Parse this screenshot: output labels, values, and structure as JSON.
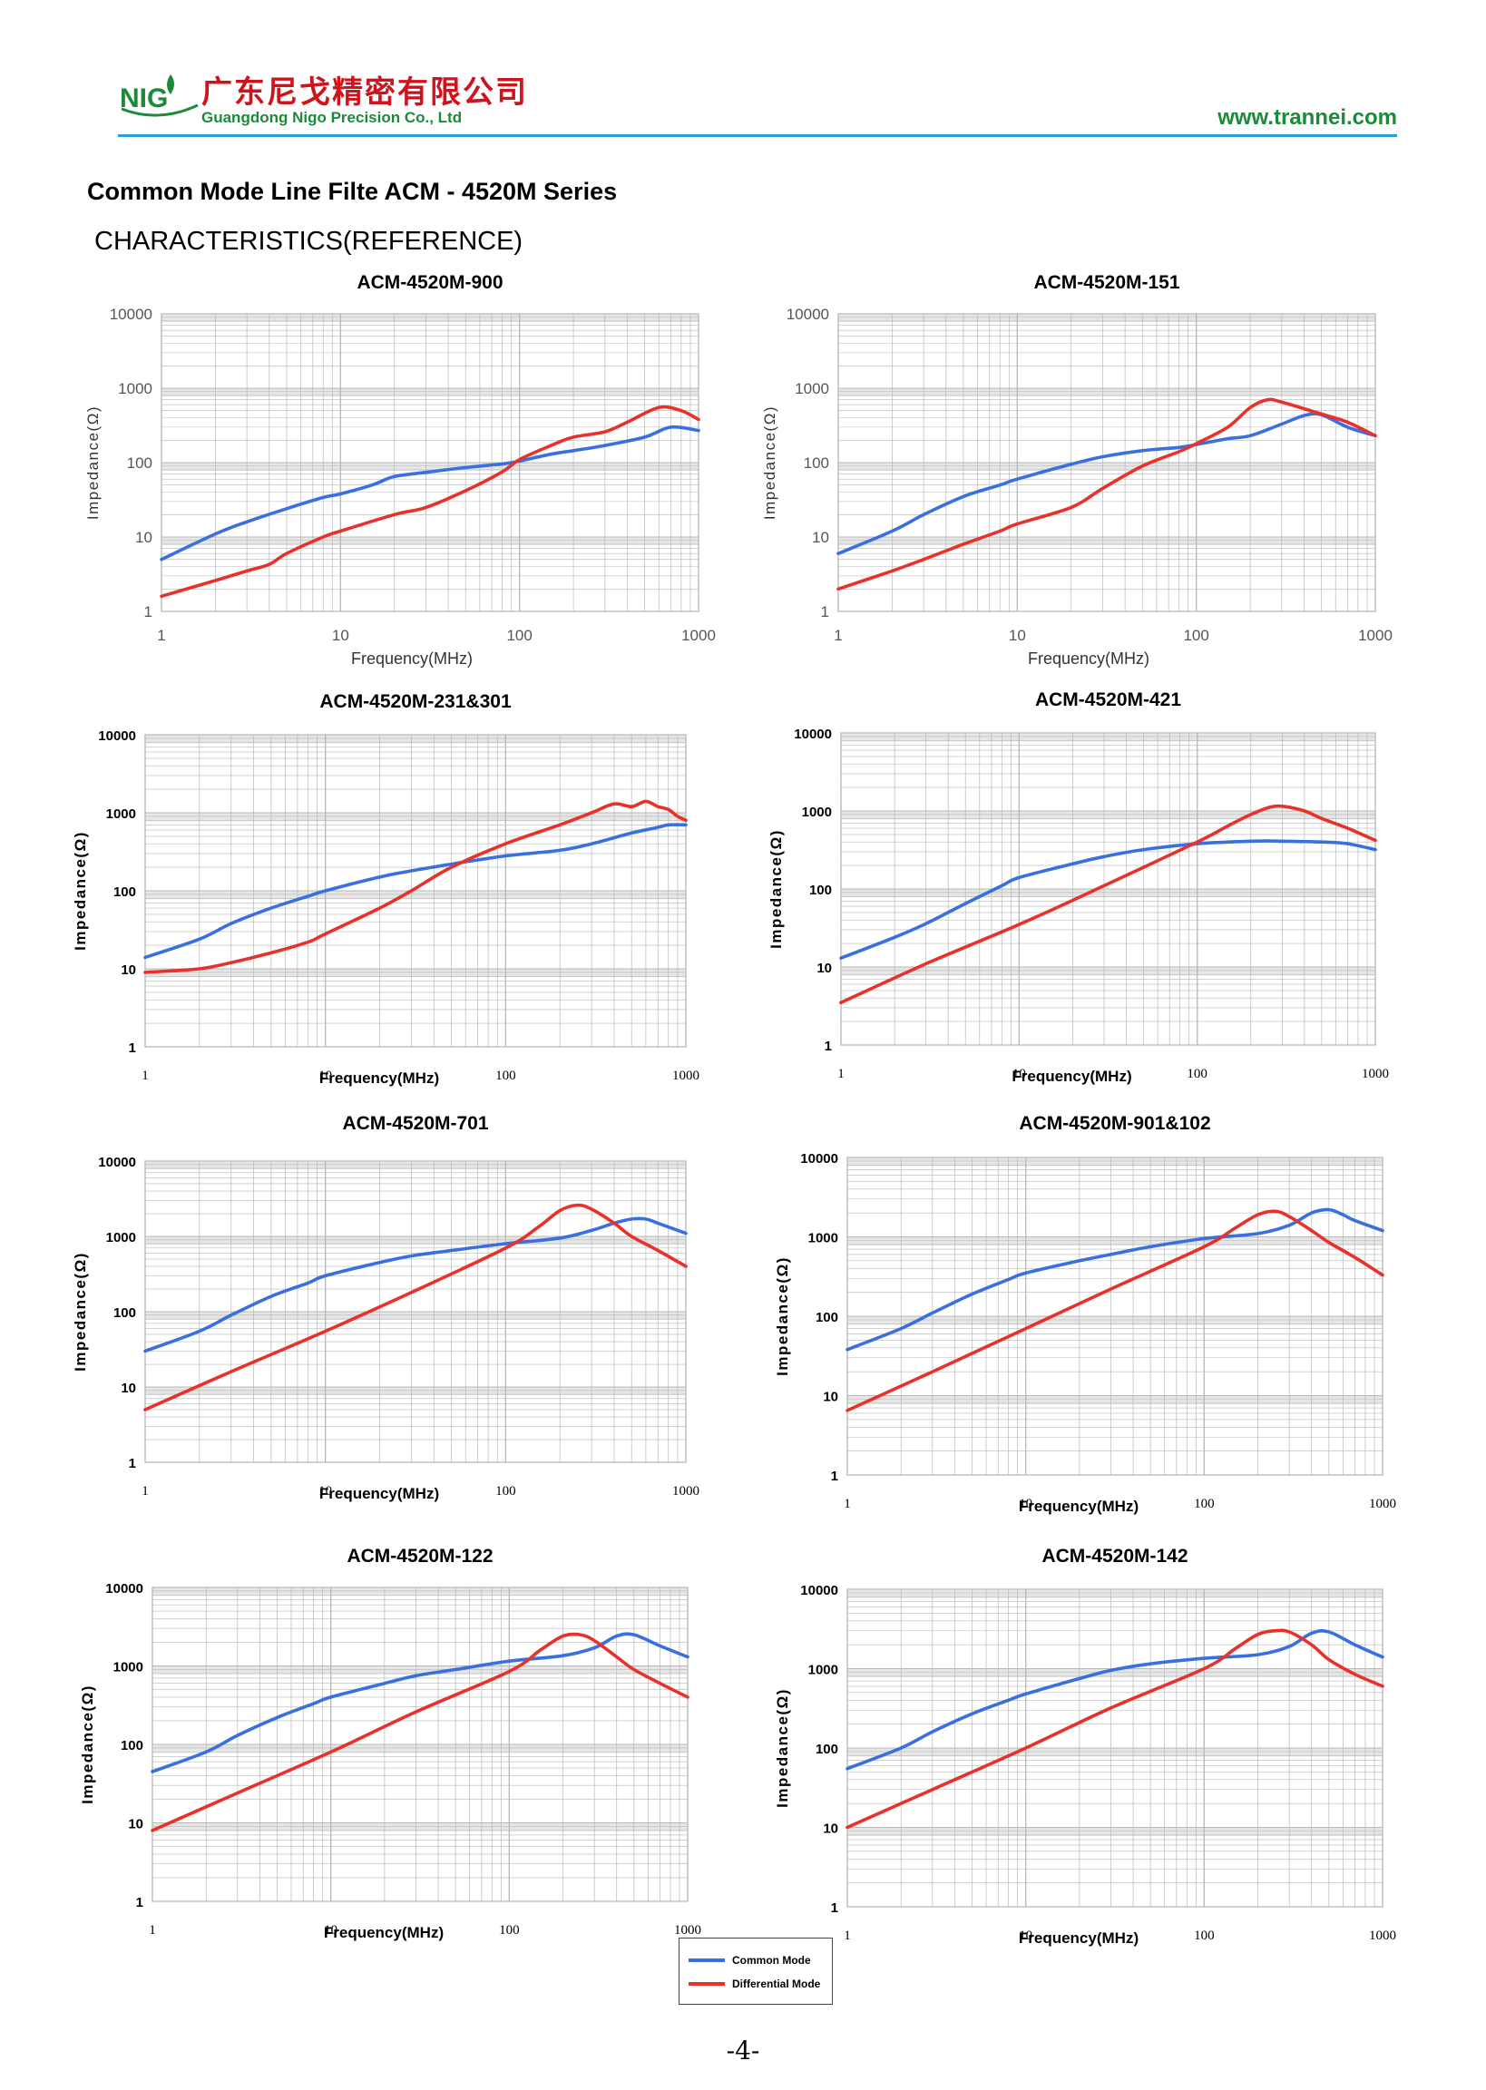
{
  "header": {
    "logo_text": "NIG",
    "company_cn": "广东尼戈精密有限公司",
    "company_en": "Guangdong Nigo Precision Co., Ltd",
    "website": "www.trannei.com"
  },
  "title": "Common Mode Line Filte ACM - 4520M Series",
  "subtitle": "CHARACTERISTICS(REFERENCE)",
  "colors": {
    "common_mode": "#3a6fe0",
    "differential_mode": "#e8312b",
    "grid": "#b8b8b8",
    "band": "#e6e6e6",
    "brand_green": "#1d8a3a",
    "brand_red": "#d0121b",
    "rule_blue": "#2a9fd6"
  },
  "axis_labels": {
    "x": "Frequency(MHz)",
    "y": "Impedance(Ω)"
  },
  "x_ticks": [
    "1",
    "10",
    "100",
    "1000"
  ],
  "y_ticks": [
    "1",
    "10",
    "100",
    "1000",
    "10000"
  ],
  "legend": {
    "common": "Common Mode",
    "differential": "Differential Mode"
  },
  "page_number": "-4-",
  "chart_data": [
    {
      "type": "line",
      "title": "ACM-4520M-900",
      "xlabel": "Frequency(MHz)",
      "ylabel": "Impedance(Ω)",
      "x_scale": "log",
      "y_scale": "log",
      "xlim": [
        1,
        1000
      ],
      "ylim": [
        1,
        10000
      ],
      "series": [
        {
          "x": [
            1,
            2,
            3,
            5,
            8,
            10,
            15,
            20,
            30,
            50,
            80,
            100,
            150,
            200,
            300,
            500,
            700,
            1000
          ],
          "values": [
            5,
            11,
            16,
            24,
            34,
            38,
            50,
            65,
            74,
            86,
            96,
            105,
            130,
            145,
            170,
            220,
            300,
            270
          ]
        },
        {
          "x": [
            1,
            2,
            3,
            4,
            5,
            8,
            10,
            20,
            30,
            50,
            80,
            100,
            150,
            200,
            300,
            400,
            600,
            800,
            1000
          ],
          "values": [
            1.6,
            2.6,
            3.5,
            4.3,
            6,
            10,
            12,
            20,
            25,
            42,
            75,
            110,
            170,
            220,
            260,
            350,
            550,
            500,
            380
          ]
        }
      ]
    },
    {
      "type": "line",
      "title": "ACM-4520M-151",
      "xlabel": "Frequency(MHz)",
      "ylabel": "Impedance(Ω)",
      "x_scale": "log",
      "y_scale": "log",
      "xlim": [
        1,
        1000
      ],
      "ylim": [
        1,
        10000
      ],
      "series": [
        {
          "x": [
            1,
            2,
            3,
            5,
            8,
            10,
            20,
            30,
            50,
            80,
            100,
            150,
            200,
            300,
            400,
            500,
            700,
            1000
          ],
          "values": [
            6,
            12,
            20,
            35,
            50,
            60,
            95,
            120,
            145,
            160,
            175,
            210,
            230,
            330,
            430,
            440,
            300,
            230
          ]
        },
        {
          "x": [
            1,
            2,
            3,
            5,
            8,
            10,
            20,
            30,
            50,
            80,
            100,
            150,
            200,
            250,
            300,
            500,
            700,
            1000
          ],
          "values": [
            2,
            3.5,
            5,
            8,
            12,
            15,
            25,
            45,
            90,
            140,
            180,
            300,
            550,
            700,
            650,
            450,
            350,
            230
          ]
        }
      ]
    },
    {
      "type": "line",
      "title": "ACM-4520M-231&301",
      "xlabel": "Frequency(MHz)",
      "ylabel": "Impedance(Ω)",
      "x_scale": "log",
      "y_scale": "log",
      "xlim": [
        1,
        1000
      ],
      "ylim": [
        1,
        10000
      ],
      "series": [
        {
          "x": [
            1,
            2,
            3,
            5,
            8,
            10,
            20,
            30,
            50,
            100,
            200,
            300,
            500,
            700,
            800,
            1000
          ],
          "values": [
            14,
            24,
            38,
            60,
            85,
            100,
            150,
            180,
            220,
            280,
            330,
            400,
            550,
            650,
            700,
            700
          ]
        },
        {
          "x": [
            1,
            2,
            3,
            5,
            8,
            10,
            20,
            30,
            50,
            100,
            200,
            300,
            400,
            500,
            600,
            700,
            800,
            900,
            1000
          ],
          "values": [
            9,
            10,
            12,
            16,
            22,
            28,
            60,
            100,
            200,
            400,
            700,
            1000,
            1300,
            1200,
            1400,
            1200,
            1100,
            900,
            800
          ]
        }
      ]
    },
    {
      "type": "line",
      "title": "ACM-4520M-421",
      "xlabel": "Frequency(MHz)",
      "ylabel": "Impedance(Ω)",
      "x_scale": "log",
      "y_scale": "log",
      "xlim": [
        1,
        1000
      ],
      "ylim": [
        1,
        10000
      ],
      "series": [
        {
          "x": [
            1,
            2,
            3,
            5,
            8,
            10,
            20,
            30,
            50,
            100,
            200,
            300,
            500,
            700,
            1000
          ],
          "values": [
            13,
            24,
            36,
            65,
            110,
            140,
            210,
            260,
            320,
            380,
            410,
            410,
            400,
            380,
            320
          ]
        },
        {
          "x": [
            1,
            3,
            10,
            30,
            100,
            150,
            200,
            250,
            300,
            400,
            500,
            700,
            1000
          ],
          "values": [
            3.5,
            11,
            35,
            110,
            400,
            650,
            900,
            1100,
            1150,
            1000,
            800,
            600,
            420
          ]
        }
      ]
    },
    {
      "type": "line",
      "title": "ACM-4520M-701",
      "xlabel": "Frequency(MHz)",
      "ylabel": "Impedance(Ω)",
      "x_scale": "log",
      "y_scale": "log",
      "xlim": [
        1,
        1000
      ],
      "ylim": [
        1,
        10000
      ],
      "series": [
        {
          "x": [
            1,
            2,
            3,
            5,
            8,
            10,
            20,
            30,
            50,
            100,
            200,
            300,
            400,
            500,
            600,
            700,
            1000
          ],
          "values": [
            30,
            55,
            90,
            160,
            240,
            300,
            450,
            550,
            650,
            800,
            950,
            1200,
            1500,
            1700,
            1700,
            1500,
            1100
          ]
        },
        {
          "x": [
            1,
            3,
            10,
            30,
            100,
            150,
            200,
            250,
            300,
            400,
            500,
            700,
            1000
          ],
          "values": [
            5,
            16,
            55,
            180,
            700,
            1300,
            2200,
            2600,
            2300,
            1500,
            1000,
            650,
            400
          ]
        }
      ]
    },
    {
      "type": "line",
      "title": "ACM-4520M-901&102",
      "xlabel": "Frequency(MHz)",
      "ylabel": "Impedance(Ω)",
      "x_scale": "log",
      "y_scale": "log",
      "xlim": [
        1,
        1000
      ],
      "ylim": [
        1,
        10000
      ],
      "series": [
        {
          "x": [
            1,
            2,
            3,
            5,
            8,
            10,
            20,
            30,
            50,
            100,
            200,
            300,
            400,
            500,
            600,
            700,
            1000
          ],
          "values": [
            38,
            70,
            110,
            190,
            290,
            350,
            500,
            600,
            750,
            950,
            1100,
            1400,
            2000,
            2200,
            1900,
            1600,
            1200
          ]
        },
        {
          "x": [
            1,
            3,
            10,
            30,
            100,
            150,
            200,
            250,
            300,
            400,
            500,
            700,
            1000
          ],
          "values": [
            6.5,
            20,
            70,
            220,
            750,
            1300,
            1900,
            2100,
            1800,
            1200,
            850,
            550,
            330
          ]
        }
      ]
    },
    {
      "type": "line",
      "title": "ACM-4520M-122",
      "xlabel": "Frequency(MHz)",
      "ylabel": "Impedance(Ω)",
      "x_scale": "log",
      "y_scale": "log",
      "xlim": [
        1,
        1000
      ],
      "ylim": [
        1,
        10000
      ],
      "series": [
        {
          "x": [
            1,
            2,
            3,
            5,
            8,
            10,
            20,
            30,
            50,
            100,
            200,
            300,
            400,
            500,
            700,
            1000
          ],
          "values": [
            45,
            80,
            130,
            220,
            330,
            400,
            600,
            750,
            900,
            1150,
            1350,
            1700,
            2400,
            2500,
            1800,
            1300
          ]
        },
        {
          "x": [
            1,
            3,
            10,
            30,
            100,
            150,
            200,
            250,
            300,
            400,
            500,
            700,
            1000
          ],
          "values": [
            8,
            24,
            80,
            260,
            850,
            1600,
            2400,
            2500,
            2100,
            1300,
            900,
            600,
            400
          ]
        }
      ]
    },
    {
      "type": "line",
      "title": "ACM-4520M-142",
      "xlabel": "Frequency(MHz)",
      "ylabel": "Impedance(Ω)",
      "x_scale": "log",
      "y_scale": "log",
      "xlim": [
        1,
        1000
      ],
      "ylim": [
        1,
        10000
      ],
      "series": [
        {
          "x": [
            1,
            2,
            3,
            5,
            8,
            10,
            20,
            30,
            50,
            100,
            200,
            300,
            400,
            500,
            700,
            1000
          ],
          "values": [
            55,
            100,
            160,
            270,
            400,
            480,
            750,
            950,
            1150,
            1350,
            1500,
            1900,
            2800,
            2900,
            2000,
            1400
          ]
        },
        {
          "x": [
            1,
            3,
            10,
            30,
            100,
            150,
            200,
            250,
            300,
            400,
            500,
            700,
            1000
          ],
          "values": [
            10,
            30,
            100,
            320,
            1000,
            1800,
            2700,
            3000,
            2900,
            2000,
            1300,
            850,
            600
          ]
        }
      ]
    }
  ]
}
